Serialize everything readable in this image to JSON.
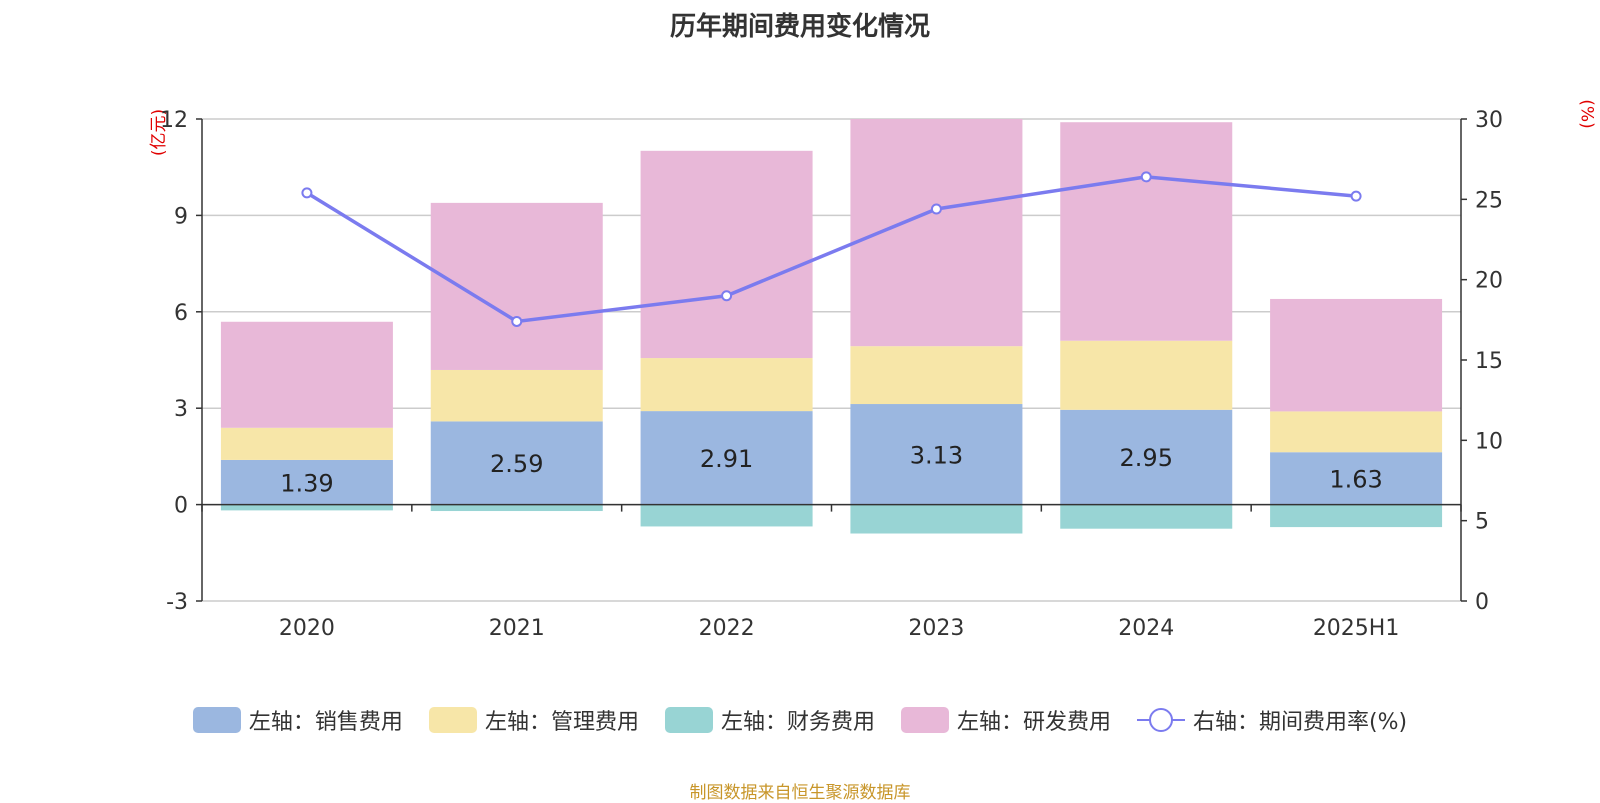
{
  "chart_data": {
    "type": "bar",
    "stacked": true,
    "title": "历年期间费用变化情况",
    "left_unit": "(亿元)",
    "right_unit": "(%)",
    "categories": [
      "2020",
      "2021",
      "2022",
      "2023",
      "2024",
      "2025H1"
    ],
    "left_ylim": [
      -3,
      12
    ],
    "left_ticks": [
      "-3",
      "0",
      "3",
      "6",
      "9",
      "12"
    ],
    "right_ylim": [
      0,
      30
    ],
    "right_ticks": [
      "0",
      "5",
      "10",
      "15",
      "20",
      "25",
      "30"
    ],
    "grid": true,
    "series": [
      {
        "name": "左轴：销售费用",
        "axis": "left",
        "color": "#9bb7e0",
        "values": [
          1.39,
          2.59,
          2.91,
          3.13,
          2.95,
          1.63
        ],
        "labels": [
          "1.39",
          "2.59",
          "2.91",
          "3.13",
          "2.95",
          "1.63"
        ]
      },
      {
        "name": "左轴：管理费用",
        "axis": "left",
        "color": "#f7e6a8",
        "values": [
          1.0,
          1.6,
          1.65,
          1.8,
          2.15,
          1.27
        ]
      },
      {
        "name": "左轴：财务费用",
        "axis": "left",
        "color": "#98d4d4",
        "values": [
          -0.18,
          -0.2,
          -0.68,
          -0.9,
          -0.75,
          -0.7
        ]
      },
      {
        "name": "左轴：研发费用",
        "axis": "left",
        "color": "#e8b8d8",
        "values": [
          3.3,
          5.2,
          6.45,
          7.07,
          6.8,
          3.5
        ]
      },
      {
        "name": "右轴：期间费用率(%)",
        "axis": "right",
        "type": "line",
        "color": "#7b7bef",
        "values": [
          25.4,
          17.4,
          19.0,
          24.4,
          26.4,
          25.2
        ]
      }
    ],
    "legend_position": "bottom"
  },
  "source": "制图数据来自恒生聚源数据库"
}
